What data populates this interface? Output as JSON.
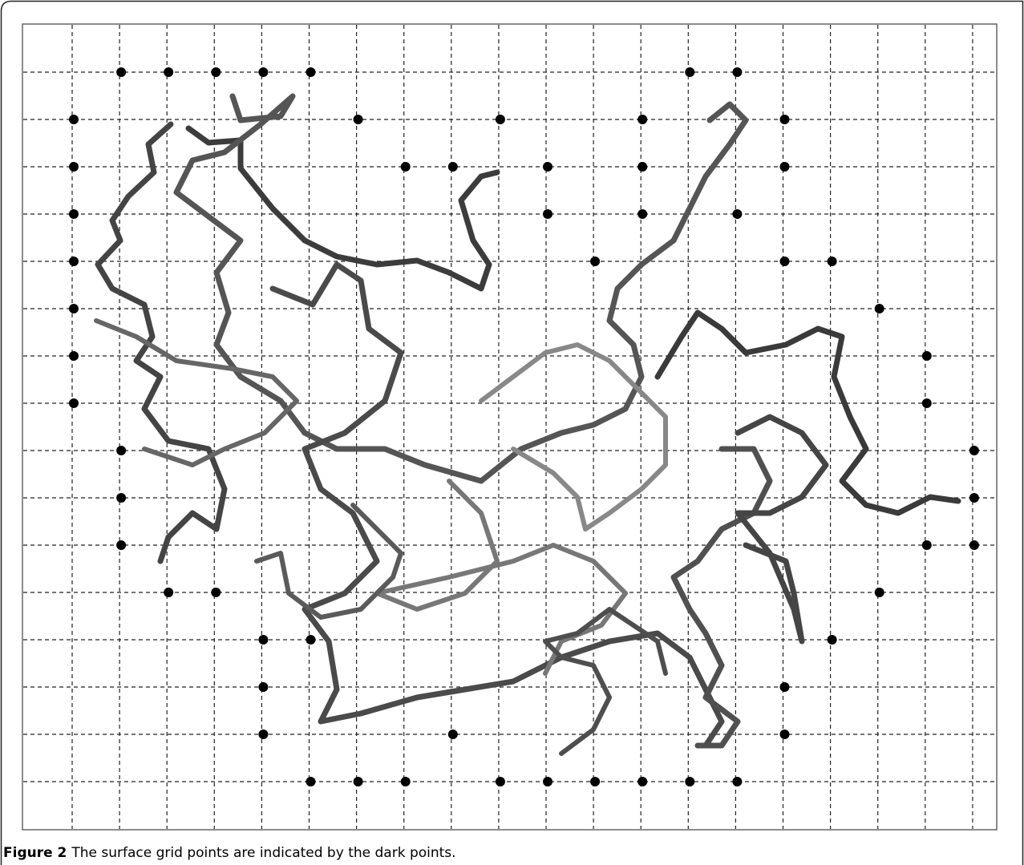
{
  "figure": {
    "label": "Figure 2",
    "caption": "The surface grid points are indicated by the dark points."
  }
}
